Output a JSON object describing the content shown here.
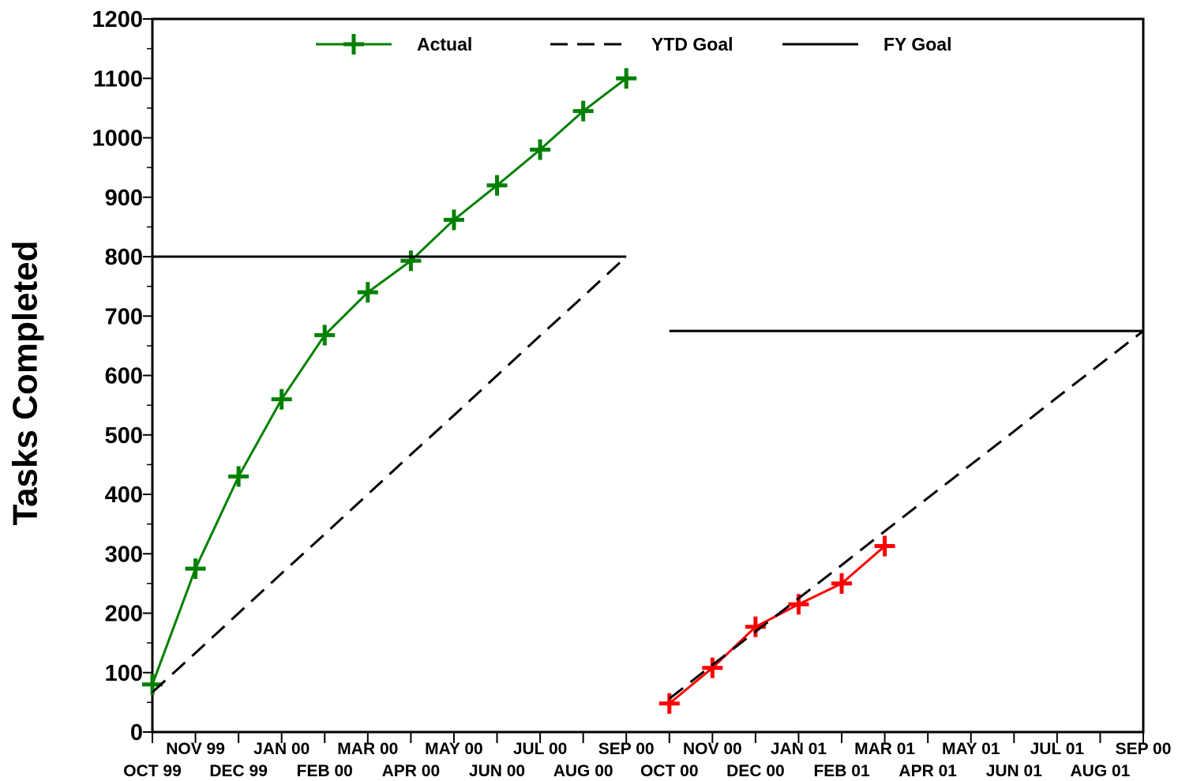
{
  "chart_data": {
    "type": "line",
    "y_label": "Tasks Completed",
    "categories": [
      "OCT 99",
      "NOV 99",
      "DEC 99",
      "JAN 00",
      "FEB 00",
      "MAR 00",
      "APR 00",
      "MAY 00",
      "JUN 00",
      "JUL 00",
      "AUG 00",
      "SEP 00",
      "OCT 00",
      "NOV 00",
      "DEC 00",
      "JAN 01",
      "FEB 01",
      "MAR 01",
      "APR 01",
      "MAY 01",
      "JUN 01",
      "JUL 01",
      "AUG 01",
      "SEP 00"
    ],
    "series": [
      {
        "name": "Actual",
        "color": "#008000",
        "style": "solid",
        "marker": "plus",
        "values": [
          80,
          275,
          430,
          560,
          668,
          740,
          793,
          862,
          920,
          980,
          1045,
          1100,
          null,
          null,
          null,
          null,
          null,
          null,
          null,
          null,
          null,
          null,
          null,
          null
        ]
      },
      {
        "color": "#ff0000",
        "style": "solid",
        "marker": "plus",
        "values": [
          null,
          null,
          null,
          null,
          null,
          null,
          null,
          null,
          null,
          null,
          null,
          null,
          48,
          108,
          177,
          215,
          250,
          313,
          null,
          null,
          null,
          null,
          null,
          null
        ]
      },
      {
        "name": "YTD Goal",
        "color": "#000000",
        "style": "dashed",
        "values": [
          67,
          133,
          200,
          267,
          333,
          400,
          467,
          533,
          600,
          667,
          733,
          800,
          null,
          null,
          null,
          null,
          null,
          null,
          null,
          null,
          null,
          null,
          null,
          null
        ]
      },
      {
        "color": "#000000",
        "style": "dashed",
        "values": [
          null,
          null,
          null,
          null,
          null,
          null,
          null,
          null,
          null,
          null,
          null,
          null,
          56,
          113,
          169,
          225,
          281,
          338,
          394,
          450,
          506,
          563,
          619,
          675
        ]
      },
      {
        "name": "FY Goal",
        "color": "#000000",
        "style": "solid",
        "values": [
          800,
          800,
          800,
          800,
          800,
          800,
          800,
          800,
          800,
          800,
          800,
          800,
          null,
          null,
          null,
          null,
          null,
          null,
          null,
          null,
          null,
          null,
          null,
          null
        ]
      },
      {
        "color": "#000000",
        "style": "solid",
        "values": [
          null,
          null,
          null,
          null,
          null,
          null,
          null,
          null,
          null,
          null,
          null,
          null,
          675,
          675,
          675,
          675,
          675,
          675,
          675,
          675,
          675,
          675,
          675,
          675
        ]
      }
    ],
    "ylim": [
      0,
      1200
    ],
    "yticks": [
      0,
      100,
      200,
      300,
      400,
      500,
      600,
      700,
      800,
      900,
      1000,
      1100,
      1200
    ],
    "legend": "top"
  }
}
